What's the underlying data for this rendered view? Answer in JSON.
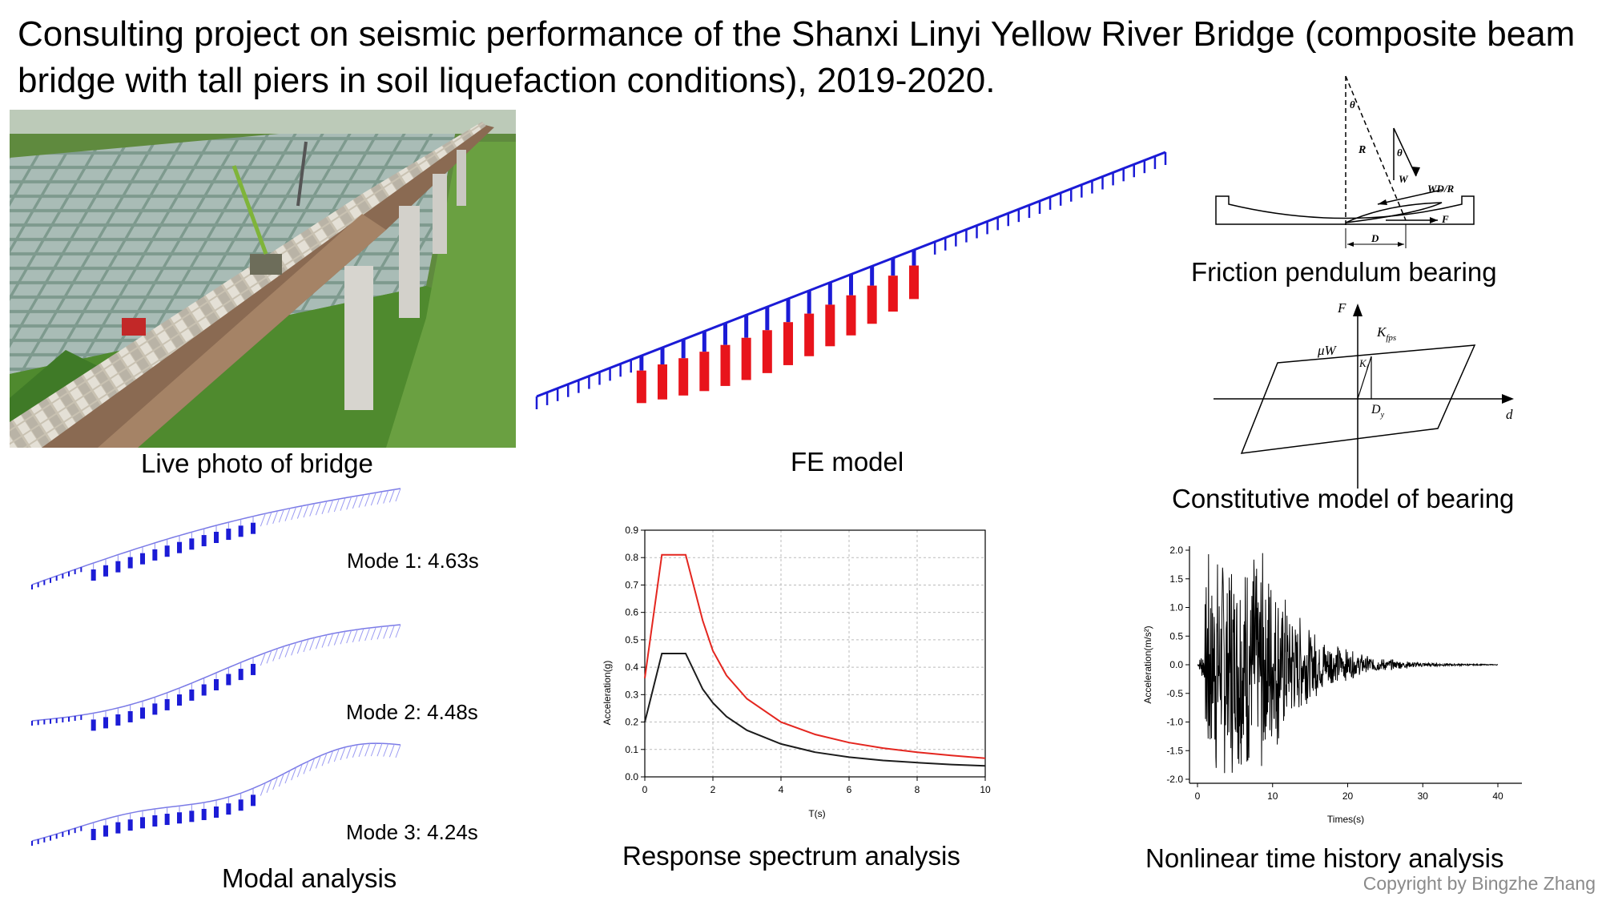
{
  "title": "Consulting project on seismic performance of the Shanxi Linyi Yellow River Bridge (composite beam bridge with tall piers in soil liquefaction conditions), 2019-2020.",
  "captions": {
    "photo": "Live photo of bridge",
    "fe": "FE model",
    "pendulum": "Friction pendulum bearing",
    "constitutive": "Constitutive model of bearing",
    "modal": "Modal analysis",
    "spectrum": "Response spectrum analysis",
    "history": "Nonlinear time history analysis"
  },
  "modes": [
    "Mode 1: 4.63s",
    "Mode 2: 4.48s",
    "Mode 3: 4.24s"
  ],
  "pendulum_labels": {
    "theta": "θ",
    "R": "R",
    "W": "W",
    "WDR": "WD/R",
    "F": "F",
    "D": "D"
  },
  "constitutive_labels": {
    "F": "F",
    "Kfps": "K",
    "Kfps_sub": "fps",
    "muW": "μW",
    "Ki": "K",
    "Ki_sub": "i",
    "Dy": "D",
    "Dy_sub": "y",
    "d": "d"
  },
  "copyright": "Copyright by Bingzhe Zhang",
  "colors": {
    "pier_red": "#e8141b",
    "beam_blue": "#1b1bd6",
    "spectrum_red": "#e4261f",
    "spectrum_black": "#1c1c1c"
  },
  "chart_data": [
    {
      "type": "line",
      "xlabel": "T(s)",
      "ylabel": "Acceleration(g)",
      "xlim": [
        0,
        10
      ],
      "ylim": [
        0,
        0.9
      ],
      "xticks": [
        "0",
        "2",
        "4",
        "6",
        "8",
        "10"
      ],
      "yticks": [
        "0.0",
        "0.1",
        "0.2",
        "0.3",
        "0.4",
        "0.5",
        "0.6",
        "0.7",
        "0.8",
        "0.9"
      ],
      "grid": true,
      "series": [
        {
          "color": "#e4261f",
          "x": [
            0,
            0.5,
            1.2,
            1.7,
            2.0,
            2.4,
            3.0,
            4.0,
            5.0,
            6.0,
            7.0,
            8.0,
            9.0,
            10.0
          ],
          "values": [
            0.36,
            0.81,
            0.81,
            0.57,
            0.46,
            0.37,
            0.285,
            0.2,
            0.155,
            0.125,
            0.105,
            0.09,
            0.078,
            0.068
          ]
        },
        {
          "color": "#1c1c1c",
          "x": [
            0,
            0.5,
            1.2,
            1.7,
            2.0,
            2.4,
            3.0,
            4.0,
            5.0,
            6.0,
            7.0,
            8.0,
            9.0,
            10.0
          ],
          "values": [
            0.2,
            0.45,
            0.45,
            0.32,
            0.27,
            0.22,
            0.17,
            0.12,
            0.09,
            0.072,
            0.06,
            0.052,
            0.045,
            0.04
          ]
        }
      ]
    },
    {
      "type": "line",
      "xlabel": "Times(s)",
      "ylabel": "Acceleration(m/s²)",
      "xlim": [
        0,
        40
      ],
      "ylim": [
        -2.0,
        2.0
      ],
      "xticks": [
        "0",
        "10",
        "20",
        "30",
        "40"
      ],
      "yticks": [
        "-2.0",
        "-1.5",
        "-1.0",
        "-0.5",
        "0.0",
        "0.5",
        "1.0",
        "1.5",
        "2.0"
      ],
      "grid": false,
      "series": [
        {
          "color": "#000000",
          "peak": 2.0,
          "duration": 40
        }
      ]
    }
  ]
}
